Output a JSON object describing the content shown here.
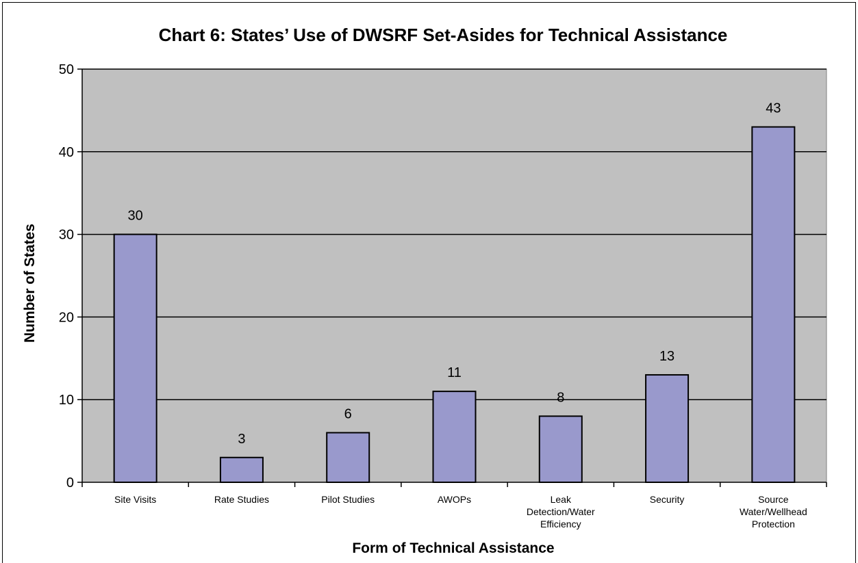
{
  "chart_data": {
    "type": "bar",
    "title": "Chart 6: States’ Use of DWSRF Set-Asides for Technical Assistance",
    "xlabel": "Form of Technical Assistance",
    "ylabel": "Number of States",
    "categories": [
      [
        "Site Visits"
      ],
      [
        "Rate Studies"
      ],
      [
        "Pilot Studies"
      ],
      [
        "AWOPs"
      ],
      [
        "Leak",
        "Detection/Water",
        "Efficiency"
      ],
      [
        "Security"
      ],
      [
        "Source",
        "Water/Wellhead",
        "Protection"
      ]
    ],
    "values": [
      30,
      3,
      6,
      11,
      8,
      13,
      43
    ],
    "ylim": [
      0,
      50
    ],
    "yticks": [
      0,
      10,
      20,
      30,
      40,
      50
    ],
    "grid": true,
    "legend": "none",
    "colors": {
      "bar_fill": "#9999cc",
      "plot_background": "#c0c0c0",
      "gridline": "#000000"
    }
  }
}
